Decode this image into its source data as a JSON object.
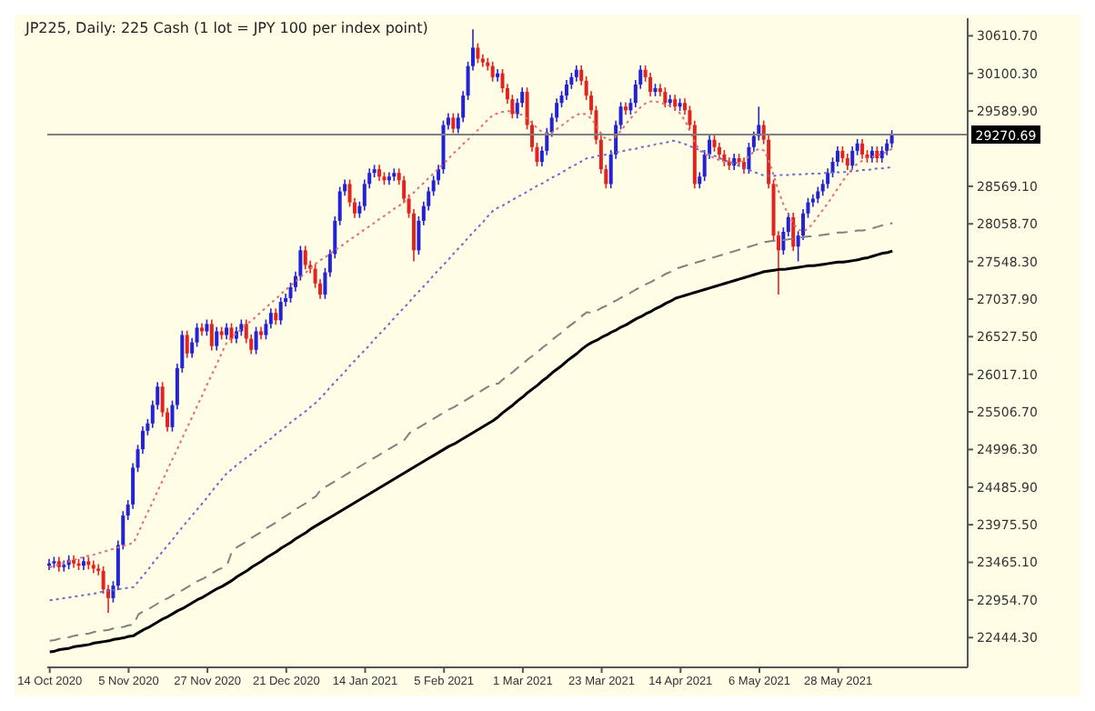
{
  "chart_data": {
    "type": "candlestick",
    "title": "JP225, Daily: 225 Cash (1 lot = JPY 100 per index point)",
    "categories": [
      "14 Oct 2020",
      null,
      null,
      null,
      null,
      null,
      null,
      null,
      null,
      null,
      null,
      null,
      null,
      null,
      null,
      null,
      "5 Nov 2020",
      null,
      null,
      null,
      null,
      null,
      null,
      null,
      null,
      null,
      null,
      null,
      null,
      null,
      null,
      null,
      "27 Nov 2020",
      null,
      null,
      null,
      null,
      null,
      null,
      null,
      null,
      null,
      null,
      null,
      null,
      null,
      null,
      null,
      "21 Dec 2020",
      null,
      null,
      null,
      null,
      null,
      null,
      null,
      null,
      null,
      null,
      null,
      null,
      null,
      null,
      null,
      "14 Jan 2021",
      null,
      null,
      null,
      null,
      null,
      null,
      null,
      null,
      null,
      null,
      null,
      null,
      null,
      null,
      null,
      "5 Feb 2021",
      null,
      null,
      null,
      null,
      null,
      null,
      null,
      null,
      null,
      null,
      null,
      null,
      null,
      null,
      null,
      "1 Mar 2021",
      null,
      null,
      null,
      null,
      null,
      null,
      null,
      null,
      null,
      null,
      null,
      null,
      null,
      null,
      null,
      "23 Mar 2021",
      null,
      null,
      null,
      null,
      null,
      null,
      null,
      null,
      null,
      null,
      null,
      null,
      null,
      null,
      null,
      "14 Apr 2021",
      null,
      null,
      null,
      null,
      null,
      null,
      null,
      null,
      null,
      null,
      null,
      null,
      null,
      null,
      null,
      "6 May 2021",
      null,
      null,
      null,
      null,
      null,
      null,
      null,
      null,
      null,
      null,
      null,
      null,
      null,
      null,
      null,
      "28 May 2021",
      null,
      null,
      null,
      null,
      null,
      null,
      null,
      null,
      null,
      null,
      null
    ],
    "colors": [
      "#2222d6",
      "#2222d6",
      "#e3231f",
      "#2222d6",
      "#2222d6",
      "#e3231f",
      "#e3231f",
      "#2222d6",
      "#e3231f",
      "#e3231f",
      "#e3231f",
      "#e3231f",
      "#e3231f",
      "#2222d6",
      "#2222d6",
      "#2222d6",
      "#2222d6",
      "#2222d6",
      "#2222d6",
      "#2222d6",
      "#2222d6",
      "#2222d6",
      "#2222d6",
      "#e3231f",
      "#e3231f",
      "#2222d6",
      "#2222d6",
      "#2222d6",
      "#e3231f",
      "#2222d6",
      "#2222d6",
      "#e3231f",
      "#2222d6",
      "#e3231f",
      "#2222d6",
      "#e3231f",
      "#2222d6",
      "#e3231f",
      "#2222d6",
      "#2222d6",
      "#e3231f",
      "#e3231f",
      "#2222d6",
      "#e3231f",
      "#2222d6",
      "#2222d6",
      "#e3231f",
      "#2222d6",
      "#2222d6",
      "#2222d6",
      "#2222d6",
      "#2222d6",
      "#e3231f",
      "#e3231f",
      "#e3231f",
      "#e3231f",
      "#2222d6",
      "#2222d6",
      "#2222d6",
      "#2222d6",
      "#2222d6",
      "#e3231f",
      "#e3231f",
      "#2222d6",
      "#2222d6",
      "#2222d6",
      "#2222d6",
      "#e3231f",
      "#e3231f",
      "#2222d6",
      "#2222d6",
      "#e3231f",
      "#e3231f",
      "#e3231f",
      "#e3231f",
      "#2222d6",
      "#2222d6",
      "#2222d6",
      "#2222d6",
      "#2222d6",
      "#2222d6",
      "#2222d6",
      "#e3231f",
      "#2222d6",
      "#2222d6",
      "#2222d6",
      "#2222d6",
      "#e3231f",
      "#e3231f",
      "#e3231f",
      "#e3231f",
      "#2222d6",
      "#e3231f",
      "#e3231f",
      "#e3231f",
      "#2222d6",
      "#2222d6",
      "#e3231f",
      "#e3231f",
      "#e3231f",
      "#2222d6",
      "#2222d6",
      "#2222d6",
      "#2222d6",
      "#2222d6",
      "#2222d6",
      "#2222d6",
      "#2222d6",
      "#e3231f",
      "#e3231f",
      "#e3231f",
      "#e3231f",
      "#e3231f",
      "#e3231f",
      "#2222d6",
      "#2222d6",
      "#2222d6",
      "#e3231f",
      "#2222d6",
      "#2222d6",
      "#2222d6",
      "#e3231f",
      "#e3231f",
      "#2222d6",
      "#e3231f",
      "#e3231f",
      "#2222d6",
      "#e3231f",
      "#2222d6",
      "#e3231f",
      "#e3231f",
      "#e3231f",
      "#2222d6",
      "#2222d6",
      "#2222d6",
      "#e3231f",
      "#e3231f",
      "#e3231f",
      "#e3231f",
      "#2222d6",
      "#e3231f",
      "#e3231f",
      "#2222d6",
      "#2222d6",
      "#2222d6",
      "#e3231f",
      "#e3231f",
      "#e3231f",
      "#e3231f",
      "#2222d6",
      "#2222d6",
      "#e3231f",
      "#2222d6",
      "#2222d6",
      "#2222d6",
      "#2222d6",
      "#2222d6",
      "#2222d6",
      "#2222d6",
      "#2222d6",
      "#2222d6",
      "#e3231f",
      "#e3231f",
      "#2222d6",
      "#2222d6",
      "#e3231f",
      "#e3231f",
      "#2222d6",
      "#e3231f",
      "#2222d6",
      "#2222d6",
      "#2222d6"
    ],
    "ohlc": [
      [
        23420,
        23510,
        23360,
        23450
      ],
      [
        23450,
        23540,
        23390,
        23480
      ],
      [
        23480,
        23540,
        23340,
        23400
      ],
      [
        23400,
        23490,
        23340,
        23430
      ],
      [
        23430,
        23560,
        23370,
        23500
      ],
      [
        23500,
        23560,
        23390,
        23450
      ],
      [
        23450,
        23510,
        23360,
        23420
      ],
      [
        23420,
        23540,
        23360,
        23480
      ],
      [
        23480,
        23540,
        23370,
        23430
      ],
      [
        23430,
        23490,
        23320,
        23380
      ],
      [
        23380,
        23440,
        23290,
        23350
      ],
      [
        23350,
        23410,
        23040,
        23100
      ],
      [
        23100,
        23160,
        22780,
        22980
      ],
      [
        22980,
        23210,
        22920,
        23150
      ],
      [
        23150,
        23760,
        23090,
        23700
      ],
      [
        23700,
        24160,
        23640,
        24100
      ],
      [
        24100,
        24310,
        24040,
        24250
      ],
      [
        24250,
        24810,
        24190,
        24750
      ],
      [
        24750,
        25060,
        24690,
        25000
      ],
      [
        25000,
        25310,
        24940,
        25250
      ],
      [
        25250,
        25410,
        25190,
        25350
      ],
      [
        25350,
        25660,
        25290,
        25600
      ],
      [
        25600,
        25910,
        25540,
        25850
      ],
      [
        25850,
        25910,
        25440,
        25500
      ],
      [
        25500,
        25560,
        25240,
        25300
      ],
      [
        25300,
        25660,
        25240,
        25600
      ],
      [
        25600,
        26160,
        25540,
        26100
      ],
      [
        26100,
        26610,
        26040,
        26550
      ],
      [
        26550,
        26610,
        26240,
        26300
      ],
      [
        26300,
        26510,
        26240,
        26450
      ],
      [
        26450,
        26710,
        26390,
        26650
      ],
      [
        26650,
        26710,
        26540,
        26600
      ],
      [
        26600,
        26760,
        26540,
        26700
      ],
      [
        26700,
        26760,
        26340,
        26400
      ],
      [
        26400,
        26660,
        26340,
        26600
      ],
      [
        26600,
        26660,
        26490,
        26550
      ],
      [
        26550,
        26710,
        26490,
        26650
      ],
      [
        26650,
        26710,
        26440,
        26500
      ],
      [
        26500,
        26660,
        26440,
        26600
      ],
      [
        26600,
        26760,
        26540,
        26700
      ],
      [
        26700,
        26760,
        26440,
        26500
      ],
      [
        26500,
        26560,
        26290,
        26350
      ],
      [
        26350,
        26660,
        26290,
        26600
      ],
      [
        26600,
        26660,
        26490,
        26550
      ],
      [
        26550,
        26760,
        26490,
        26700
      ],
      [
        26700,
        26910,
        26640,
        26850
      ],
      [
        26850,
        26910,
        26690,
        26750
      ],
      [
        26750,
        27060,
        26690,
        27000
      ],
      [
        27000,
        27110,
        26940,
        27050
      ],
      [
        27050,
        27260,
        26990,
        27200
      ],
      [
        27200,
        27410,
        27140,
        27350
      ],
      [
        27350,
        27760,
        27290,
        27700
      ],
      [
        27700,
        27760,
        27440,
        27500
      ],
      [
        27500,
        27560,
        27390,
        27450
      ],
      [
        27450,
        27510,
        27190,
        27250
      ],
      [
        27250,
        27310,
        27040,
        27100
      ],
      [
        27100,
        27460,
        27040,
        27400
      ],
      [
        27400,
        27710,
        27340,
        27650
      ],
      [
        27650,
        28160,
        27590,
        28100
      ],
      [
        28100,
        28560,
        28040,
        28500
      ],
      [
        28500,
        28660,
        28440,
        28600
      ],
      [
        28600,
        28660,
        28290,
        28350
      ],
      [
        28350,
        28410,
        28140,
        28200
      ],
      [
        28200,
        28360,
        28140,
        28300
      ],
      [
        28300,
        28660,
        28240,
        28600
      ],
      [
        28600,
        28810,
        28540,
        28750
      ],
      [
        28750,
        28860,
        28690,
        28800
      ],
      [
        28800,
        28860,
        28640,
        28700
      ],
      [
        28700,
        28760,
        28590,
        28650
      ],
      [
        28650,
        28760,
        28590,
        28700
      ],
      [
        28700,
        28810,
        28640,
        28750
      ],
      [
        28750,
        28810,
        28590,
        28650
      ],
      [
        28650,
        28710,
        28340,
        28400
      ],
      [
        28400,
        28460,
        28140,
        28200
      ],
      [
        28200,
        28260,
        27550,
        27700
      ],
      [
        27700,
        28160,
        27640,
        28100
      ],
      [
        28100,
        28360,
        28040,
        28300
      ],
      [
        28300,
        28560,
        28240,
        28500
      ],
      [
        28500,
        28710,
        28440,
        28650
      ],
      [
        28650,
        28860,
        28590,
        28800
      ],
      [
        28800,
        29460,
        28740,
        29400
      ],
      [
        29400,
        29560,
        29340,
        29500
      ],
      [
        29500,
        29560,
        29290,
        29350
      ],
      [
        29350,
        29560,
        29290,
        29500
      ],
      [
        29500,
        29860,
        29440,
        29800
      ],
      [
        29800,
        30260,
        29740,
        30200
      ],
      [
        30200,
        30700,
        30140,
        30450
      ],
      [
        30450,
        30510,
        30240,
        30300
      ],
      [
        30300,
        30360,
        30190,
        30250
      ],
      [
        30250,
        30310,
        30140,
        30200
      ],
      [
        30200,
        30260,
        29990,
        30050
      ],
      [
        30050,
        30160,
        29990,
        30100
      ],
      [
        30100,
        30160,
        29840,
        29900
      ],
      [
        29900,
        29960,
        29690,
        29750
      ],
      [
        29750,
        29810,
        29490,
        29550
      ],
      [
        29550,
        29760,
        29490,
        29700
      ],
      [
        29700,
        29910,
        29640,
        29850
      ],
      [
        29850,
        29910,
        29340,
        29400
      ],
      [
        29400,
        29460,
        29040,
        29100
      ],
      [
        29100,
        29160,
        28840,
        28900
      ],
      [
        28900,
        29110,
        28840,
        29050
      ],
      [
        29050,
        29360,
        28990,
        29300
      ],
      [
        29300,
        29560,
        29240,
        29500
      ],
      [
        29500,
        29760,
        29440,
        29700
      ],
      [
        29700,
        29860,
        29640,
        29800
      ],
      [
        29800,
        30010,
        29740,
        29950
      ],
      [
        29950,
        30110,
        29890,
        30050
      ],
      [
        30050,
        30210,
        29990,
        30150
      ],
      [
        30150,
        30210,
        29940,
        30000
      ],
      [
        30000,
        30060,
        29740,
        29800
      ],
      [
        29800,
        29860,
        29540,
        29600
      ],
      [
        29600,
        29660,
        29140,
        29200
      ],
      [
        29200,
        29260,
        28740,
        28800
      ],
      [
        28800,
        28860,
        28540,
        28600
      ],
      [
        28600,
        29060,
        28540,
        29000
      ],
      [
        29000,
        29460,
        28940,
        29400
      ],
      [
        29400,
        29710,
        29340,
        29650
      ],
      [
        29650,
        29710,
        29540,
        29600
      ],
      [
        29600,
        29760,
        29540,
        29700
      ],
      [
        29700,
        30010,
        29640,
        29950
      ],
      [
        29950,
        30210,
        29890,
        30150
      ],
      [
        30150,
        30210,
        29990,
        30050
      ],
      [
        30050,
        30110,
        29790,
        29850
      ],
      [
        29850,
        29960,
        29790,
        29900
      ],
      [
        29900,
        29960,
        29790,
        29850
      ],
      [
        29850,
        29910,
        29640,
        29700
      ],
      [
        29700,
        29810,
        29640,
        29750
      ],
      [
        29750,
        29810,
        29590,
        29650
      ],
      [
        29650,
        29760,
        29590,
        29700
      ],
      [
        29700,
        29760,
        29540,
        29600
      ],
      [
        29600,
        29660,
        29340,
        29400
      ],
      [
        29400,
        29460,
        28540,
        28600
      ],
      [
        28600,
        28760,
        28540,
        28700
      ],
      [
        28700,
        29060,
        28640,
        29000
      ],
      [
        29000,
        29260,
        28940,
        29200
      ],
      [
        29200,
        29260,
        29040,
        29100
      ],
      [
        29100,
        29160,
        28940,
        29000
      ],
      [
        29000,
        29060,
        28840,
        28900
      ],
      [
        28900,
        28960,
        28790,
        28850
      ],
      [
        28850,
        29010,
        28790,
        28950
      ],
      [
        28950,
        29010,
        28840,
        28900
      ],
      [
        28900,
        28960,
        28740,
        28800
      ],
      [
        28800,
        29160,
        28740,
        29100
      ],
      [
        29100,
        29310,
        29040,
        29250
      ],
      [
        29250,
        29650,
        29190,
        29400
      ],
      [
        29400,
        29460,
        29140,
        29200
      ],
      [
        29200,
        29260,
        28540,
        28600
      ],
      [
        28600,
        28660,
        27840,
        27900
      ],
      [
        27900,
        27960,
        27100,
        27700
      ],
      [
        27700,
        28010,
        27640,
        27950
      ],
      [
        27950,
        28210,
        27890,
        28150
      ],
      [
        28150,
        28210,
        27690,
        27750
      ],
      [
        27750,
        27960,
        27550,
        27900
      ],
      [
        27900,
        28260,
        27840,
        28200
      ],
      [
        28200,
        28410,
        28140,
        28350
      ],
      [
        28350,
        28460,
        28290,
        28400
      ],
      [
        28400,
        28560,
        28340,
        28500
      ],
      [
        28500,
        28660,
        28440,
        28600
      ],
      [
        28600,
        28810,
        28540,
        28750
      ],
      [
        28750,
        28960,
        28690,
        28900
      ],
      [
        28900,
        29110,
        28840,
        29050
      ],
      [
        29050,
        29110,
        28890,
        28950
      ],
      [
        28950,
        29010,
        28790,
        28850
      ],
      [
        28850,
        29110,
        28790,
        29050
      ],
      [
        29050,
        29210,
        28990,
        29150
      ],
      [
        29150,
        29210,
        28940,
        29000
      ],
      [
        29000,
        29060,
        28890,
        28950
      ],
      [
        28950,
        29110,
        28890,
        29050
      ],
      [
        29050,
        29110,
        28890,
        28950
      ],
      [
        28950,
        29110,
        28890,
        29050
      ],
      [
        29050,
        29210,
        28990,
        29150
      ],
      [
        29150,
        29330,
        29090,
        29270
      ]
    ],
    "series": [
      {
        "type": "line",
        "color": "#000000",
        "line_style": "solid",
        "values": [
          22250,
          22260,
          22280,
          22290,
          22300,
          22320,
          22330,
          22340,
          22350,
          22370,
          22380,
          22390,
          22400,
          22420,
          22430,
          22440,
          22460,
          22470,
          22510,
          22550,
          22580,
          22620,
          22660,
          22700,
          22730,
          22770,
          22810,
          22840,
          22880,
          22920,
          22960,
          22990,
          23030,
          23070,
          23110,
          23140,
          23180,
          23220,
          23270,
          23310,
          23350,
          23400,
          23440,
          23480,
          23530,
          23570,
          23610,
          23660,
          23700,
          23740,
          23790,
          23830,
          23870,
          23920,
          23960,
          24000,
          24040,
          24080,
          24120,
          24160,
          24200,
          24240,
          24280,
          24320,
          24360,
          24400,
          24440,
          24480,
          24520,
          24560,
          24600,
          24640,
          24680,
          24720,
          24760,
          24800,
          24840,
          24880,
          24920,
          24960,
          25000,
          25040,
          25070,
          25110,
          25150,
          25190,
          25230,
          25270,
          25310,
          25350,
          25390,
          25440,
          25500,
          25550,
          25600,
          25660,
          25710,
          25770,
          25820,
          25870,
          25930,
          25980,
          26040,
          26090,
          26140,
          26200,
          26250,
          26300,
          26360,
          26410,
          26450,
          26480,
          26520,
          26550,
          26590,
          26620,
          26660,
          26690,
          26730,
          26770,
          26800,
          26840,
          26870,
          26910,
          26940,
          26980,
          27010,
          27050,
          27070,
          27090,
          27110,
          27130,
          27150,
          27170,
          27190,
          27210,
          27230,
          27250,
          27270,
          27290,
          27310,
          27330,
          27350,
          27370,
          27390,
          27410,
          27420,
          27430,
          27440,
          27440,
          27450,
          27460,
          27470,
          27480,
          27490,
          27490,
          27500,
          27510,
          27520,
          27530,
          27540,
          27540,
          27550,
          27560,
          27570,
          27590,
          27600,
          27620,
          27640,
          27660,
          27670,
          27690
        ]
      },
      {
        "type": "line",
        "color": "#808080",
        "line_style": "dashed",
        "values": [
          22400,
          22410,
          22430,
          22440,
          22450,
          22470,
          22480,
          22490,
          22500,
          22520,
          22530,
          22540,
          22550,
          22570,
          22580,
          22590,
          22610,
          22620,
          22760,
          22800,
          22830,
          22870,
          22910,
          22950,
          22980,
          23020,
          23060,
          23090,
          23130,
          23170,
          23210,
          23240,
          23280,
          23320,
          23360,
          23390,
          23430,
          23620,
          23670,
          23710,
          23750,
          23800,
          23840,
          23880,
          23930,
          23970,
          24010,
          24060,
          24100,
          24140,
          24190,
          24230,
          24270,
          24320,
          24360,
          24450,
          24490,
          24530,
          24570,
          24610,
          24650,
          24690,
          24730,
          24770,
          24810,
          24850,
          24890,
          24930,
          24970,
          25010,
          25050,
          25090,
          25130,
          25220,
          25260,
          25300,
          25340,
          25380,
          25420,
          25460,
          25500,
          25540,
          25570,
          25610,
          25650,
          25690,
          25730,
          25770,
          25810,
          25850,
          25890,
          25890,
          25950,
          26000,
          26050,
          26110,
          26160,
          26220,
          26270,
          26320,
          26380,
          26430,
          26490,
          26540,
          26590,
          26650,
          26700,
          26750,
          26810,
          26860,
          26850,
          26880,
          26920,
          26950,
          26990,
          27020,
          27060,
          27090,
          27130,
          27170,
          27200,
          27240,
          27270,
          27310,
          27340,
          27380,
          27410,
          27450,
          27470,
          27490,
          27510,
          27530,
          27550,
          27570,
          27590,
          27610,
          27630,
          27650,
          27670,
          27690,
          27710,
          27730,
          27750,
          27770,
          27790,
          27810,
          27820,
          27830,
          27840,
          27840,
          27850,
          27860,
          27870,
          27880,
          27890,
          27890,
          27900,
          27910,
          27920,
          27930,
          27940,
          27940,
          27950,
          27960,
          27970,
          27970,
          27980,
          28000,
          28020,
          28040,
          28050,
          28070
        ]
      },
      {
        "type": "line",
        "color": "#e07070",
        "line_style": "dotted",
        "values": [
          23400,
          23420,
          23440,
          23460,
          23480,
          23500,
          23520,
          23540,
          23560,
          23570,
          23590,
          23610,
          23630,
          23650,
          23670,
          23690,
          23710,
          23730,
          23870,
          24020,
          24160,
          24300,
          24450,
          24590,
          24740,
          24880,
          25020,
          25170,
          25310,
          25450,
          25600,
          25740,
          25890,
          26030,
          26170,
          26320,
          26460,
          26520,
          26580,
          26640,
          26700,
          26750,
          26810,
          26870,
          26930,
          26990,
          27050,
          27110,
          27170,
          27230,
          27280,
          27340,
          27400,
          27460,
          27520,
          27570,
          27610,
          27660,
          27710,
          27750,
          27800,
          27850,
          27890,
          27940,
          27990,
          28030,
          28080,
          28130,
          28170,
          28220,
          28270,
          28310,
          28360,
          28430,
          28490,
          28560,
          28620,
          28690,
          28750,
          28820,
          28880,
          28950,
          29020,
          29080,
          29150,
          29210,
          29280,
          29340,
          29410,
          29480,
          29540,
          29560,
          29580,
          29590,
          29580,
          29560,
          29530,
          29480,
          29420,
          29350,
          29300,
          29280,
          29300,
          29350,
          29400,
          29450,
          29500,
          29540,
          29560,
          29540,
          29480,
          29380,
          29270,
          29200,
          29200,
          29250,
          29330,
          29420,
          29500,
          29580,
          29650,
          29700,
          29720,
          29720,
          29700,
          29680,
          29660,
          29620,
          29550,
          29450,
          29300,
          29150,
          29050,
          29000,
          28980,
          28950,
          28920,
          28900,
          28900,
          28890,
          28880,
          28920,
          28980,
          29050,
          29080,
          29050,
          28900,
          28700,
          28480,
          28300,
          28180,
          28050,
          27980,
          27960,
          28000,
          28080,
          28170,
          28260,
          28350,
          28450,
          28550,
          28650,
          28740,
          28820,
          28880,
          28920,
          28950,
          28970,
          28990,
          29010,
          29040,
          29080
        ]
      },
      {
        "type": "line",
        "color": "#6a6ad0",
        "line_style": "dotted",
        "values": [
          22950,
          22960,
          22970,
          22980,
          22990,
          23000,
          23010,
          23020,
          23030,
          23040,
          23060,
          23070,
          23080,
          23090,
          23100,
          23110,
          23120,
          23130,
          23210,
          23290,
          23370,
          23460,
          23540,
          23620,
          23700,
          23780,
          23870,
          23950,
          24030,
          24110,
          24190,
          24270,
          24350,
          24440,
          24520,
          24600,
          24680,
          24730,
          24790,
          24840,
          24890,
          24940,
          25000,
          25050,
          25100,
          25150,
          25210,
          25260,
          25310,
          25370,
          25420,
          25470,
          25520,
          25580,
          25630,
          25700,
          25770,
          25850,
          25920,
          25990,
          26060,
          26140,
          26210,
          26280,
          26350,
          26420,
          26500,
          26570,
          26640,
          26710,
          26790,
          26860,
          26930,
          27000,
          27080,
          27150,
          27220,
          27290,
          27370,
          27440,
          27510,
          27580,
          27660,
          27730,
          27800,
          27880,
          27950,
          28020,
          28090,
          28170,
          28240,
          28280,
          28310,
          28350,
          28390,
          28430,
          28460,
          28500,
          28540,
          28580,
          28610,
          28650,
          28690,
          28720,
          28760,
          28800,
          28840,
          28870,
          28910,
          28950,
          28960,
          28980,
          28990,
          29000,
          29020,
          29030,
          29040,
          29060,
          29070,
          29080,
          29100,
          29110,
          29120,
          29140,
          29150,
          29160,
          29180,
          29190,
          29160,
          29140,
          29110,
          29080,
          29060,
          29030,
          29000,
          28980,
          28950,
          28920,
          28900,
          28870,
          28840,
          28820,
          28790,
          28760,
          28740,
          28710,
          28710,
          28710,
          28720,
          28720,
          28720,
          28730,
          28730,
          28730,
          28740,
          28740,
          28740,
          28750,
          28750,
          28760,
          28760,
          28760,
          28770,
          28770,
          28780,
          28790,
          28790,
          28800,
          28810,
          28810,
          28820,
          28830
        ]
      }
    ],
    "ylim": [
      22040,
      30850
    ],
    "yticks": [
      {
        "value": 22444.3,
        "label": "22444.30"
      },
      {
        "value": 22954.7,
        "label": "22954.70"
      },
      {
        "value": 23465.1,
        "label": "23465.10"
      },
      {
        "value": 23975.5,
        "label": "23975.50"
      },
      {
        "value": 24485.9,
        "label": "24485.90"
      },
      {
        "value": 24996.3,
        "label": "24996.30"
      },
      {
        "value": 25506.7,
        "label": "25506.70"
      },
      {
        "value": 26017.1,
        "label": "26017.10"
      },
      {
        "value": 26527.5,
        "label": "26527.50"
      },
      {
        "value": 27037.9,
        "label": "27037.90"
      },
      {
        "value": 27548.3,
        "label": "27548.30"
      },
      {
        "value": 28058.7,
        "label": "28058.70"
      },
      {
        "value": 28569.1,
        "label": "28569.10"
      },
      {
        "value": 29589.9,
        "label": "29589.90"
      },
      {
        "value": 30100.3,
        "label": "30100.30"
      },
      {
        "value": 30610.7,
        "label": "30610.70"
      }
    ],
    "ref_lines": [
      {
        "axis": "y",
        "value": 29270.69,
        "label": "29270.69",
        "color": "#808080"
      }
    ]
  }
}
